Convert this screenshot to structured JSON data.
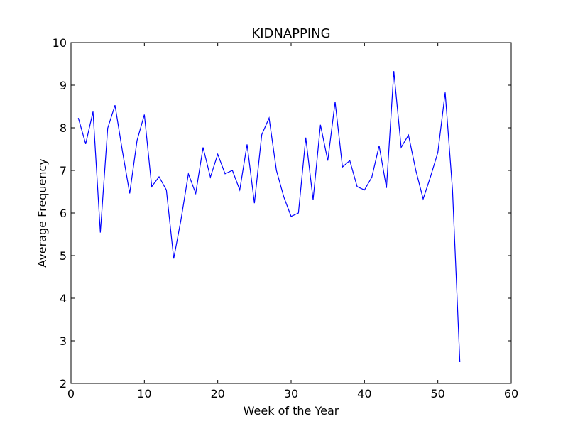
{
  "chart_data": {
    "type": "line",
    "title": "KIDNAPPING",
    "xlabel": "Week of the Year",
    "ylabel": "Average Frequency",
    "xlim": [
      0,
      60
    ],
    "ylim": [
      2,
      10
    ],
    "xticks": [
      0,
      10,
      20,
      30,
      40,
      50,
      60
    ],
    "yticks": [
      2,
      3,
      4,
      5,
      6,
      7,
      8,
      9,
      10
    ],
    "grid": false,
    "series": [
      {
        "color": "#0000ff",
        "x": [
          1,
          2,
          3,
          4,
          5,
          6,
          7,
          8,
          9,
          10,
          11,
          12,
          13,
          14,
          15,
          16,
          17,
          18,
          19,
          20,
          21,
          22,
          23,
          24,
          25,
          26,
          27,
          28,
          29,
          30,
          31,
          32,
          33,
          34,
          35,
          36,
          37,
          38,
          39,
          40,
          41,
          42,
          43,
          44,
          45,
          46,
          47,
          48,
          49,
          50,
          51,
          52,
          53
        ],
        "y": [
          8.23,
          7.62,
          8.38,
          5.54,
          7.99,
          8.53,
          7.46,
          6.46,
          7.7,
          8.31,
          6.62,
          6.85,
          6.54,
          4.93,
          5.85,
          6.92,
          6.46,
          7.54,
          6.84,
          7.38,
          6.92,
          7.0,
          6.54,
          7.61,
          6.23,
          7.84,
          8.23,
          7.0,
          6.38,
          5.92,
          6.0,
          7.77,
          6.31,
          8.07,
          7.23,
          8.61,
          7.08,
          7.23,
          6.62,
          6.54,
          6.84,
          7.58,
          6.59,
          9.33,
          7.54,
          7.83,
          7.0,
          6.33,
          6.85,
          7.42,
          8.83,
          6.54,
          2.5
        ]
      }
    ]
  }
}
